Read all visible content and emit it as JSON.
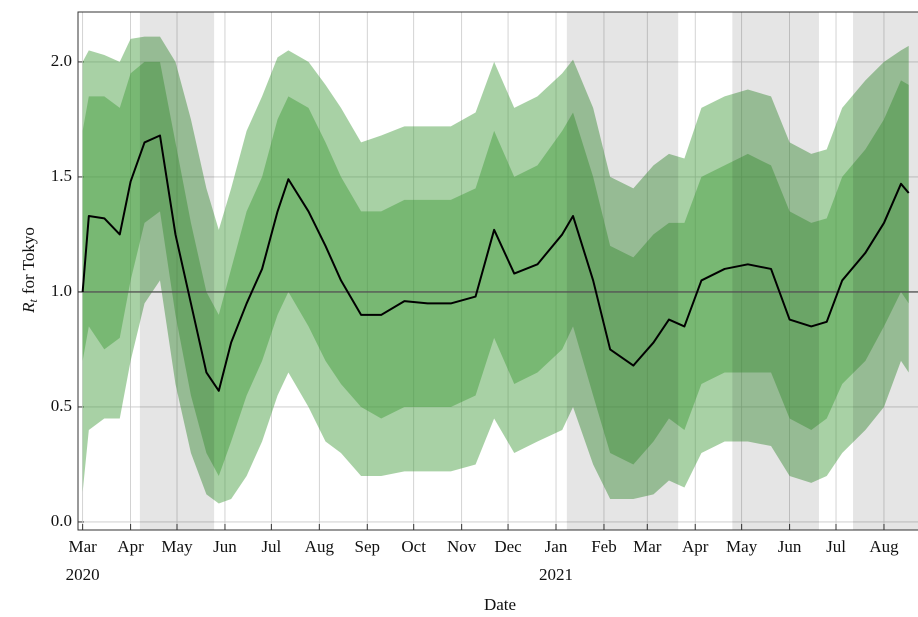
{
  "chart_data": {
    "type": "line",
    "xlabel": "Date",
    "ylabel_symbol": "R",
    "ylabel_subscript": "t",
    "ylabel_text": "for Tokyo",
    "x": [
      "2020-03-01",
      "2020-03-05",
      "2020-03-15",
      "2020-03-25",
      "2020-04-01",
      "2020-04-10",
      "2020-04-20",
      "2020-04-30",
      "2020-05-10",
      "2020-05-20",
      "2020-05-28",
      "2020-06-05",
      "2020-06-15",
      "2020-06-25",
      "2020-07-05",
      "2020-07-12",
      "2020-07-25",
      "2020-08-05",
      "2020-08-15",
      "2020-08-28",
      "2020-09-10",
      "2020-09-25",
      "2020-10-10",
      "2020-10-25",
      "2020-11-10",
      "2020-11-22",
      "2020-12-05",
      "2020-12-20",
      "2021-01-05",
      "2021-01-12",
      "2021-01-25",
      "2021-02-05",
      "2021-02-20",
      "2021-03-05",
      "2021-03-15",
      "2021-03-25",
      "2021-04-05",
      "2021-04-20",
      "2021-05-05",
      "2021-05-20",
      "2021-06-01",
      "2021-06-15",
      "2021-06-25",
      "2021-07-05",
      "2021-07-20",
      "2021-08-01",
      "2021-08-12",
      "2021-08-17"
    ],
    "values": [
      1.0,
      1.33,
      1.32,
      1.25,
      1.48,
      1.65,
      1.68,
      1.25,
      0.95,
      0.65,
      0.57,
      0.78,
      0.95,
      1.1,
      1.35,
      1.49,
      1.35,
      1.2,
      1.05,
      0.9,
      0.9,
      0.96,
      0.95,
      0.95,
      0.98,
      1.27,
      1.08,
      1.12,
      1.25,
      1.33,
      1.05,
      0.75,
      0.68,
      0.78,
      0.88,
      0.85,
      1.05,
      1.1,
      1.12,
      1.1,
      0.88,
      0.85,
      0.87,
      1.05,
      1.17,
      1.3,
      1.47,
      1.43
    ],
    "color": "#000000",
    "bands": [
      {
        "color": "#3f9a38",
        "opacity": 0.45,
        "lower": [
          0.13,
          0.4,
          0.45,
          0.45,
          0.7,
          0.95,
          1.05,
          0.6,
          0.3,
          0.12,
          0.08,
          0.1,
          0.2,
          0.35,
          0.55,
          0.65,
          0.5,
          0.35,
          0.3,
          0.2,
          0.2,
          0.22,
          0.22,
          0.22,
          0.25,
          0.45,
          0.3,
          0.35,
          0.4,
          0.5,
          0.25,
          0.1,
          0.1,
          0.12,
          0.18,
          0.15,
          0.3,
          0.35,
          0.35,
          0.33,
          0.2,
          0.17,
          0.2,
          0.3,
          0.4,
          0.5,
          0.7,
          0.65
        ],
        "upper": [
          2.0,
          2.05,
          2.03,
          2.0,
          2.1,
          2.11,
          2.11,
          2.0,
          1.75,
          1.45,
          1.27,
          1.45,
          1.7,
          1.85,
          2.02,
          2.05,
          2.0,
          1.9,
          1.8,
          1.65,
          1.68,
          1.72,
          1.72,
          1.72,
          1.78,
          2.0,
          1.8,
          1.85,
          1.95,
          2.01,
          1.8,
          1.5,
          1.45,
          1.55,
          1.6,
          1.58,
          1.8,
          1.85,
          1.88,
          1.85,
          1.65,
          1.6,
          1.62,
          1.8,
          1.92,
          2.0,
          2.05,
          2.07
        ]
      },
      {
        "color": "#3f9a38",
        "opacity": 0.45,
        "lower": [
          0.7,
          0.85,
          0.75,
          0.8,
          1.05,
          1.3,
          1.35,
          0.9,
          0.55,
          0.3,
          0.2,
          0.35,
          0.55,
          0.7,
          0.9,
          1.0,
          0.85,
          0.7,
          0.6,
          0.5,
          0.45,
          0.5,
          0.5,
          0.5,
          0.55,
          0.8,
          0.6,
          0.65,
          0.75,
          0.85,
          0.55,
          0.3,
          0.25,
          0.35,
          0.45,
          0.4,
          0.6,
          0.65,
          0.65,
          0.65,
          0.45,
          0.4,
          0.45,
          0.6,
          0.7,
          0.85,
          1.0,
          0.95
        ],
        "upper": [
          1.7,
          1.85,
          1.85,
          1.8,
          1.95,
          2.0,
          2.0,
          1.65,
          1.3,
          1.0,
          0.9,
          1.1,
          1.35,
          1.5,
          1.75,
          1.85,
          1.8,
          1.65,
          1.5,
          1.35,
          1.35,
          1.4,
          1.4,
          1.4,
          1.45,
          1.7,
          1.5,
          1.55,
          1.7,
          1.78,
          1.5,
          1.2,
          1.15,
          1.25,
          1.3,
          1.3,
          1.5,
          1.55,
          1.6,
          1.55,
          1.35,
          1.3,
          1.32,
          1.5,
          1.62,
          1.75,
          1.92,
          1.9
        ]
      }
    ],
    "shaded_periods": [
      [
        "2020-04-07",
        "2020-05-25"
      ],
      [
        "2021-01-08",
        "2021-03-21"
      ],
      [
        "2021-04-25",
        "2021-06-20"
      ],
      [
        "2021-07-12",
        "2021-08-23"
      ]
    ],
    "shade_color": "#000000",
    "shade_opacity": 0.1,
    "reference_line": 1.0,
    "xlim": [
      "2020-02-27",
      "2021-08-23"
    ],
    "ylim": [
      -0.035,
      2.217
    ],
    "yticks": [
      {
        "value": 0,
        "label": "0.0"
      },
      {
        "value": 0.5,
        "label": "0.5"
      },
      {
        "value": 1,
        "label": "1.0"
      },
      {
        "value": 1.5,
        "label": "1.5"
      },
      {
        "value": 2,
        "label": "2.0"
      }
    ],
    "xticks": [
      {
        "value": "2020-03-01",
        "label": "Mar"
      },
      {
        "value": "2020-04-01",
        "label": "Apr"
      },
      {
        "value": "2020-05-01",
        "label": "May"
      },
      {
        "value": "2020-06-01",
        "label": "Jun"
      },
      {
        "value": "2020-07-01",
        "label": "Jul"
      },
      {
        "value": "2020-08-01",
        "label": "Aug"
      },
      {
        "value": "2020-09-01",
        "label": "Sep"
      },
      {
        "value": "2020-10-01",
        "label": "Oct"
      },
      {
        "value": "2020-11-01",
        "label": "Nov"
      },
      {
        "value": "2020-12-01",
        "label": "Dec"
      },
      {
        "value": "2021-01-01",
        "label": "Jan"
      },
      {
        "value": "2021-02-01",
        "label": "Feb"
      },
      {
        "value": "2021-03-01",
        "label": "Mar"
      },
      {
        "value": "2021-04-01",
        "label": "Apr"
      },
      {
        "value": "2021-05-01",
        "label": "May"
      },
      {
        "value": "2021-06-01",
        "label": "Jun"
      },
      {
        "value": "2021-07-01",
        "label": "Jul"
      },
      {
        "value": "2021-08-01",
        "label": "Aug"
      }
    ],
    "year_labels": [
      {
        "value": "2020-03-01",
        "label": "2020"
      },
      {
        "value": "2021-01-01",
        "label": "2021"
      }
    ],
    "grid": true
  }
}
